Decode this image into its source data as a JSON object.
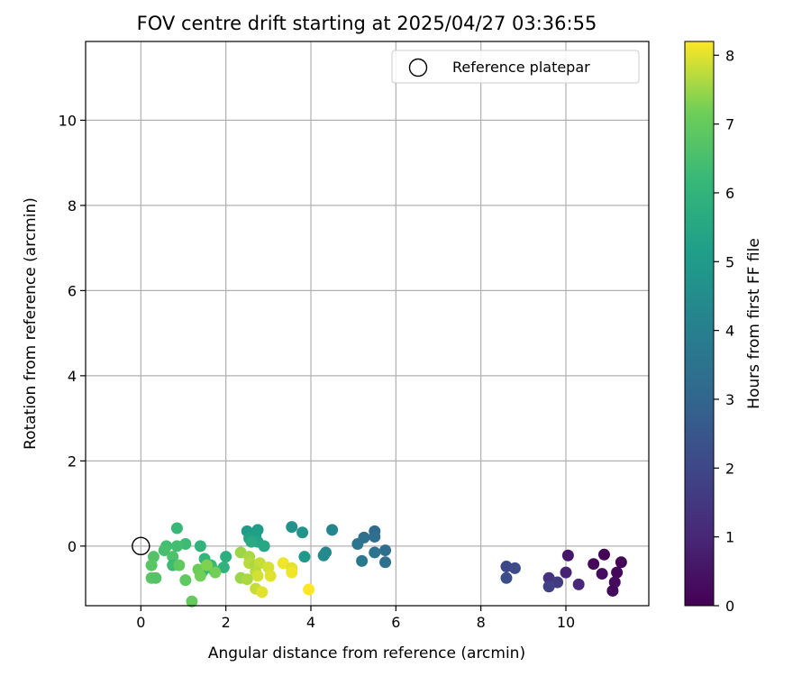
{
  "chart_data": {
    "type": "scatter",
    "title": "FOV centre drift starting at 2025/04/27 03:36:55",
    "xlabel": "Angular distance from reference (arcmin)",
    "ylabel": "Rotation from reference (arcmin)",
    "xlim": [
      -1.3,
      11.95
    ],
    "ylim": [
      -1.4,
      11.85
    ],
    "xticks": [
      0,
      2,
      4,
      6,
      8,
      10
    ],
    "yticks": [
      0,
      2,
      4,
      6,
      8,
      10
    ],
    "grid": true,
    "legend": {
      "placement": "upper-right",
      "entries": [
        "Reference platepar"
      ]
    },
    "reference_point": {
      "name": "Reference platepar",
      "x": 0,
      "y": 0
    },
    "colorbar": {
      "label": "Hours from first FF file",
      "colormap": "viridis",
      "range": [
        0,
        8.2
      ],
      "ticks": [
        0,
        1,
        2,
        3,
        4,
        5,
        6,
        7,
        8
      ]
    },
    "points": [
      {
        "x": 10.9,
        "y": -0.2,
        "c": 0.05
      },
      {
        "x": 11.3,
        "y": -0.38,
        "c": 0.1
      },
      {
        "x": 10.65,
        "y": -0.42,
        "c": 0.2
      },
      {
        "x": 11.2,
        "y": -0.62,
        "c": 0.15
      },
      {
        "x": 10.85,
        "y": -0.65,
        "c": 0.3
      },
      {
        "x": 11.15,
        "y": -0.85,
        "c": 0.25
      },
      {
        "x": 11.1,
        "y": -1.05,
        "c": 0.2
      },
      {
        "x": 10.05,
        "y": -0.22,
        "c": 0.6
      },
      {
        "x": 10.0,
        "y": -0.62,
        "c": 0.9
      },
      {
        "x": 10.3,
        "y": -0.9,
        "c": 1.0
      },
      {
        "x": 9.6,
        "y": -0.75,
        "c": 1.3
      },
      {
        "x": 9.8,
        "y": -0.85,
        "c": 1.6
      },
      {
        "x": 9.6,
        "y": -0.95,
        "c": 1.8
      },
      {
        "x": 8.6,
        "y": -0.48,
        "c": 2.0
      },
      {
        "x": 8.8,
        "y": -0.52,
        "c": 2.1
      },
      {
        "x": 8.6,
        "y": -0.75,
        "c": 2.2
      },
      {
        "x": 5.5,
        "y": 0.35,
        "c": 3.2
      },
      {
        "x": 5.5,
        "y": 0.22,
        "c": 3.3
      },
      {
        "x": 5.25,
        "y": 0.2,
        "c": 3.4
      },
      {
        "x": 5.1,
        "y": 0.05,
        "c": 3.6
      },
      {
        "x": 5.75,
        "y": -0.1,
        "c": 3.3
      },
      {
        "x": 5.5,
        "y": -0.15,
        "c": 3.5
      },
      {
        "x": 5.2,
        "y": -0.35,
        "c": 3.7
      },
      {
        "x": 5.75,
        "y": -0.38,
        "c": 3.4
      },
      {
        "x": 4.5,
        "y": 0.38,
        "c": 4.2
      },
      {
        "x": 4.35,
        "y": -0.15,
        "c": 4.3
      },
      {
        "x": 4.3,
        "y": -0.22,
        "c": 4.4
      },
      {
        "x": 3.55,
        "y": 0.45,
        "c": 4.7
      },
      {
        "x": 3.8,
        "y": 0.32,
        "c": 4.8
      },
      {
        "x": 3.85,
        "y": -0.25,
        "c": 4.9
      },
      {
        "x": 2.5,
        "y": 0.35,
        "c": 5.0
      },
      {
        "x": 2.75,
        "y": 0.38,
        "c": 5.1
      },
      {
        "x": 2.7,
        "y": 0.25,
        "c": 5.2
      },
      {
        "x": 2.55,
        "y": 0.18,
        "c": 5.3
      },
      {
        "x": 2.75,
        "y": 0.1,
        "c": 5.4
      },
      {
        "x": 2.9,
        "y": 0.0,
        "c": 5.5
      },
      {
        "x": 2.6,
        "y": 0.1,
        "c": 5.6
      },
      {
        "x": 2.0,
        "y": -0.25,
        "c": 5.8
      },
      {
        "x": 1.95,
        "y": -0.5,
        "c": 5.9
      },
      {
        "x": 1.4,
        "y": 0.0,
        "c": 6.0
      },
      {
        "x": 1.5,
        "y": -0.3,
        "c": 6.1
      },
      {
        "x": 1.65,
        "y": -0.45,
        "c": 6.2
      },
      {
        "x": 1.7,
        "y": -0.55,
        "c": 6.3
      },
      {
        "x": 1.45,
        "y": -0.6,
        "c": 6.1
      },
      {
        "x": 0.85,
        "y": 0.42,
        "c": 6.2
      },
      {
        "x": 1.05,
        "y": 0.05,
        "c": 6.3
      },
      {
        "x": 0.85,
        "y": 0.0,
        "c": 6.4
      },
      {
        "x": 0.6,
        "y": 0.0,
        "c": 6.4
      },
      {
        "x": 0.55,
        "y": -0.1,
        "c": 6.5
      },
      {
        "x": 0.75,
        "y": -0.25,
        "c": 6.6
      },
      {
        "x": 0.75,
        "y": -0.45,
        "c": 6.3
      },
      {
        "x": 0.3,
        "y": -0.25,
        "c": 6.7
      },
      {
        "x": 0.25,
        "y": -0.45,
        "c": 6.8
      },
      {
        "x": 0.9,
        "y": -0.45,
        "c": 6.9
      },
      {
        "x": 0.25,
        "y": -0.75,
        "c": 6.8
      },
      {
        "x": 0.35,
        "y": -0.75,
        "c": 6.7
      },
      {
        "x": 1.05,
        "y": -0.8,
        "c": 6.9
      },
      {
        "x": 1.2,
        "y": -1.3,
        "c": 7.0
      },
      {
        "x": 1.35,
        "y": -0.55,
        "c": 7.1
      },
      {
        "x": 1.4,
        "y": -0.7,
        "c": 7.2
      },
      {
        "x": 1.55,
        "y": -0.45,
        "c": 7.3
      },
      {
        "x": 1.75,
        "y": -0.62,
        "c": 7.2
      },
      {
        "x": 2.35,
        "y": -0.15,
        "c": 7.5
      },
      {
        "x": 2.55,
        "y": -0.25,
        "c": 7.6
      },
      {
        "x": 2.55,
        "y": -0.4,
        "c": 7.7
      },
      {
        "x": 2.7,
        "y": -0.45,
        "c": 7.6
      },
      {
        "x": 2.8,
        "y": -0.4,
        "c": 7.8
      },
      {
        "x": 2.7,
        "y": -0.6,
        "c": 7.7
      },
      {
        "x": 2.75,
        "y": -0.7,
        "c": 7.9
      },
      {
        "x": 2.35,
        "y": -0.75,
        "c": 7.5
      },
      {
        "x": 2.5,
        "y": -0.78,
        "c": 7.6
      },
      {
        "x": 2.7,
        "y": -1.0,
        "c": 7.8
      },
      {
        "x": 2.85,
        "y": -1.08,
        "c": 8.0
      },
      {
        "x": 3.0,
        "y": -0.5,
        "c": 7.9
      },
      {
        "x": 3.05,
        "y": -0.7,
        "c": 8.0
      },
      {
        "x": 3.35,
        "y": -0.4,
        "c": 8.1
      },
      {
        "x": 3.55,
        "y": -0.52,
        "c": 8.0
      },
      {
        "x": 3.55,
        "y": -0.62,
        "c": 8.1
      },
      {
        "x": 3.95,
        "y": -1.02,
        "c": 8.2
      }
    ]
  }
}
